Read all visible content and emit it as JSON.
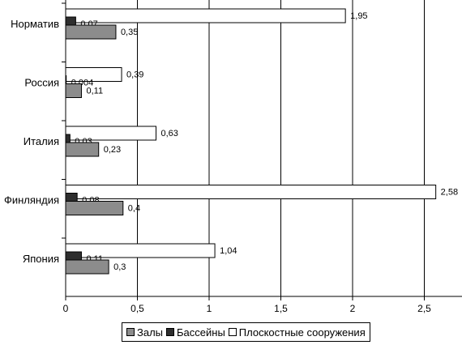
{
  "chart_data": {
    "type": "bar",
    "orientation": "horizontal",
    "categories": [
      "Норматив",
      "Россия",
      "Италия",
      "Финляндия",
      "Япония"
    ],
    "series": [
      {
        "name": "Залы",
        "values": [
          0.35,
          0.11,
          0.23,
          0.4,
          0.3
        ],
        "labels": [
          "0,35",
          "0,11",
          "0,23",
          "0,4",
          "0,3"
        ],
        "color": "#8c8c8c"
      },
      {
        "name": "Бассейны",
        "values": [
          0.07,
          0.004,
          0.03,
          0.08,
          0.11
        ],
        "labels": [
          "0,07",
          "0,004",
          "0,03",
          "0,08",
          "0,11"
        ],
        "color": "#2e2e2e"
      },
      {
        "name": "Плоскостные сооружения",
        "values": [
          1.95,
          0.39,
          0.63,
          2.58,
          1.04
        ],
        "labels": [
          "1,95",
          "0,39",
          "0,63",
          "2,58",
          "1,04"
        ],
        "color": "#ffffff"
      }
    ],
    "x_ticks": [
      0,
      0.5,
      1,
      1.5,
      2,
      2.5
    ],
    "x_tick_labels": [
      "0",
      "0,5",
      "1",
      "1,5",
      "2",
      "2,5"
    ],
    "xlim": [
      0,
      2.65
    ],
    "grid": true,
    "legend_position": "bottom",
    "title": "",
    "xlabel": "",
    "ylabel": ""
  }
}
